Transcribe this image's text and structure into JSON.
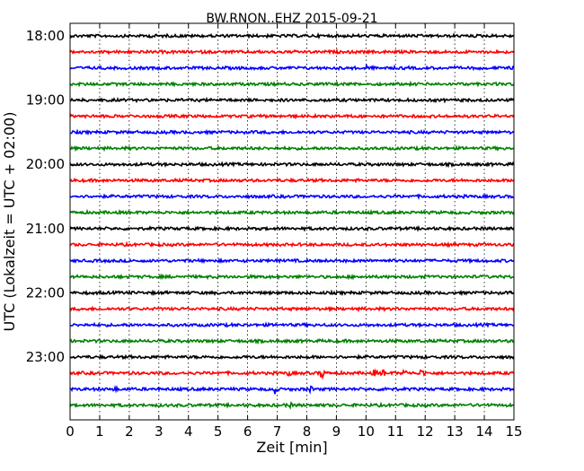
{
  "chart_data": {
    "type": "line",
    "title": "BW.RNON..EHZ 2015-09-21",
    "xlabel": "Zeit  [min]",
    "ylabel": "UTC (Lokalzeit = UTC + 02:00)",
    "xlim": [
      0,
      15
    ],
    "x_ticks": [
      "0",
      "1",
      "2",
      "3",
      "4",
      "5",
      "6",
      "7",
      "8",
      "9",
      "10",
      "11",
      "12",
      "13",
      "14",
      "15"
    ],
    "y_ticks": [
      "18:00",
      "19:00",
      "20:00",
      "21:00",
      "22:00",
      "23:00"
    ],
    "grid": "vertical dotted",
    "trace_colors": [
      "#000000",
      "#ff0000",
      "#0000ff",
      "#008000"
    ],
    "traces_per_hour": 4,
    "trace_start": "18:00",
    "trace_interval_min": 15,
    "trace_count": 24,
    "events": [
      {
        "trace": 21,
        "x": 8.5,
        "amp": 6
      },
      {
        "trace": 21,
        "x": 10.3,
        "amp": 3
      },
      {
        "trace": 21,
        "x": 10.6,
        "amp": 3
      },
      {
        "trace": 21,
        "x": 11.3,
        "amp": 3
      },
      {
        "trace": 21,
        "x": 11.9,
        "amp": 4
      },
      {
        "trace": 21,
        "x": 7.4,
        "amp": 2
      },
      {
        "trace": 22,
        "x": 6.9,
        "amp": 6
      },
      {
        "trace": 22,
        "x": 8.1,
        "amp": 3
      },
      {
        "trace": 22,
        "x": 10.7,
        "amp": 4
      },
      {
        "trace": 22,
        "x": 1.5,
        "amp": 2
      },
      {
        "trace": 23,
        "x": 7.4,
        "amp": 3
      },
      {
        "trace": 2,
        "x": 10.0,
        "amp": 2
      },
      {
        "trace": 0,
        "x": 2.8,
        "amp": 2
      }
    ]
  }
}
